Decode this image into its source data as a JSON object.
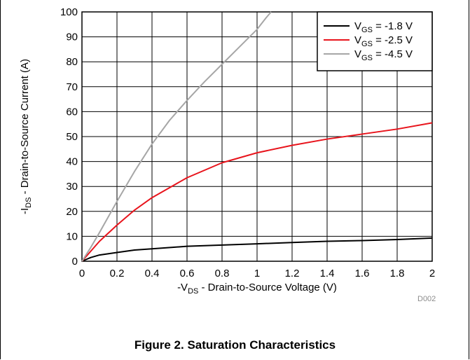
{
  "chart_data": {
    "type": "line",
    "xlabel": {
      "prefix": "-V",
      "sub": "DS",
      "suffix": " - Drain-to-Source Voltage (V)"
    },
    "ylabel": {
      "prefix": "-I",
      "sub": "DS",
      "suffix": " - Drain-to-Source Current (A)"
    },
    "xlim": [
      0,
      2
    ],
    "ylim": [
      0,
      100
    ],
    "xticks": [
      "0",
      "0.2",
      "0.4",
      "0.6",
      "0.8",
      "1",
      "1.2",
      "1.4",
      "1.6",
      "1.8",
      "2"
    ],
    "yticks": [
      "0",
      "10",
      "20",
      "30",
      "40",
      "50",
      "60",
      "70",
      "80",
      "90",
      "100"
    ],
    "grid": true,
    "legend_position": "top-right",
    "series": [
      {
        "name": {
          "prefix": "V",
          "sub": "GS",
          "suffix": " = -1.8 V"
        },
        "color": "#000000",
        "x": [
          0,
          0.05,
          0.1,
          0.2,
          0.3,
          0.4,
          0.6,
          0.8,
          1.0,
          1.2,
          1.4,
          1.6,
          1.8,
          2.0
        ],
        "y": [
          0,
          1.5,
          2.5,
          3.5,
          4.5,
          5.0,
          6.0,
          6.5,
          7.0,
          7.5,
          8.0,
          8.3,
          8.7,
          9.3
        ]
      },
      {
        "name": {
          "prefix": "V",
          "sub": "GS",
          "suffix": " = -2.5 V"
        },
        "color": "#e8141c",
        "x": [
          0,
          0.05,
          0.1,
          0.2,
          0.3,
          0.4,
          0.5,
          0.6,
          0.8,
          1.0,
          1.2,
          1.4,
          1.6,
          1.8,
          2.0
        ],
        "y": [
          0,
          4,
          8,
          14.5,
          20.5,
          25.5,
          29.5,
          33.5,
          39.5,
          43.5,
          46.5,
          49,
          51,
          53,
          55.5
        ]
      },
      {
        "name": {
          "prefix": "V",
          "sub": "GS",
          "suffix": " = -4.5 V"
        },
        "color": "#a6a6a6",
        "x": [
          0,
          0.05,
          0.1,
          0.2,
          0.3,
          0.4,
          0.5,
          0.6,
          0.7,
          0.8,
          0.9,
          1.0,
          1.05,
          1.08
        ],
        "y": [
          0,
          5.5,
          11.5,
          24,
          36,
          47,
          56.5,
          64.5,
          72,
          79,
          86,
          93,
          97.5,
          100
        ]
      }
    ]
  },
  "caption": "Figure 2. Saturation Characteristics",
  "doc_id": "D002"
}
